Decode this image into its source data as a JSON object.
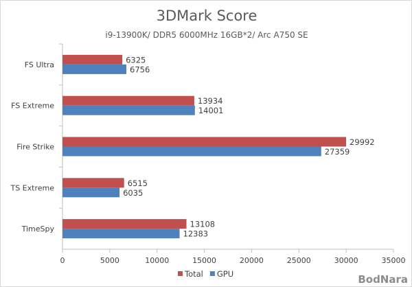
{
  "chart_data": {
    "type": "bar",
    "orientation": "horizontal",
    "title": "3DMark Score",
    "subtitle": "i9-13900K/ DDR5 6000MHz 16GB*2/ Arc A750 SE",
    "categories": [
      "FS Ultra",
      "FS Extreme",
      "Fire Strike",
      "TS Extreme",
      "TimeSpy"
    ],
    "series": [
      {
        "name": "Total",
        "color": "#c0504d",
        "values": [
          6325,
          13934,
          29992,
          6515,
          13108
        ]
      },
      {
        "name": "GPU",
        "color": "#4f81bd",
        "values": [
          6756,
          14001,
          27359,
          6035,
          12383
        ]
      }
    ],
    "xlim": [
      0,
      35000
    ],
    "xticks": [
      0,
      5000,
      10000,
      15000,
      20000,
      25000,
      30000,
      35000
    ],
    "xlabel": "",
    "ylabel": "",
    "grid": false,
    "legend": "bottom-center",
    "watermark": "BodNara"
  }
}
